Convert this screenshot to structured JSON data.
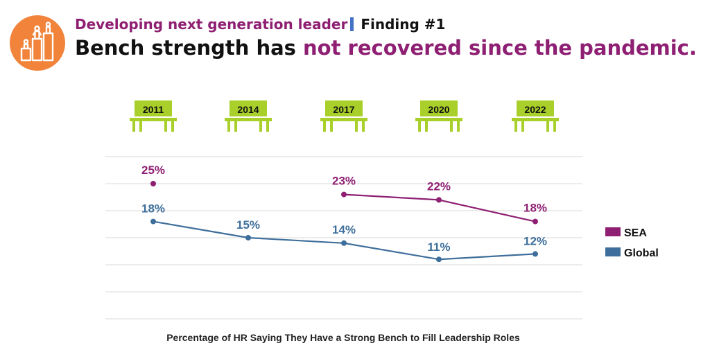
{
  "header": {
    "subtitle": "Developing next generation leader",
    "finding": "Finding #1",
    "headline_plain": "Bench strength has ",
    "headline_accent": "not recovered since the pandemic."
  },
  "colors": {
    "sea": "#8e1f72",
    "global": "#3e6e9b",
    "bench": "#a9cf2a",
    "logo": "#f1833a",
    "grid": "#d9d9d9"
  },
  "chart_data": {
    "type": "line",
    "categories": [
      "2011",
      "2014",
      "2017",
      "2020",
      "2022"
    ],
    "series": [
      {
        "name": "SEA",
        "values": [
          25,
          null,
          23,
          22,
          18
        ],
        "labels": [
          "25%",
          "",
          "23%",
          "22%",
          "18%"
        ]
      },
      {
        "name": "Global",
        "values": [
          18,
          15,
          14,
          11,
          12
        ],
        "labels": [
          "18%",
          "15%",
          "14%",
          "11%",
          "12%"
        ]
      }
    ],
    "ylim": [
      0,
      30
    ],
    "grid": true,
    "legend": "right",
    "xlabel": "Percentage of HR Saying They Have a Strong Bench to Fill Leadership Roles"
  },
  "logo_icon": "podium-people-icon",
  "bench_icon": "bench-icon"
}
